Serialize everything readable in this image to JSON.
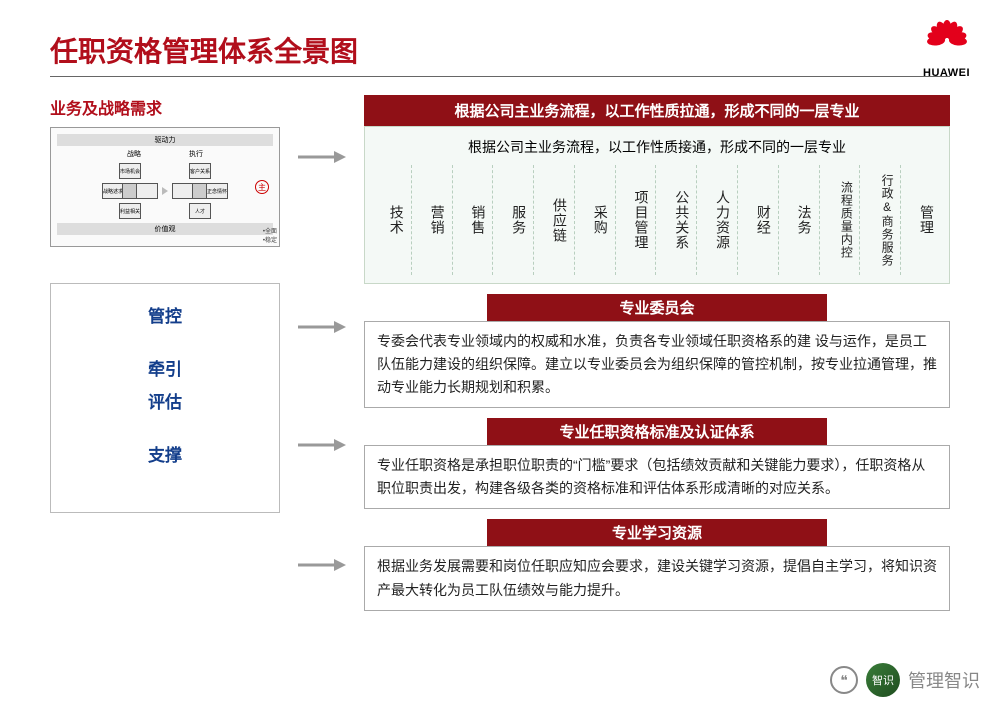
{
  "colors": {
    "brand_red": "#b10e1b",
    "banner_red": "#8f1016",
    "link_blue": "#133e8b",
    "grid_bg": "#f4f9f6",
    "grid_border": "#c8d8c8",
    "text": "#222222",
    "muted": "#888888"
  },
  "typography": {
    "title_size_pt": 21,
    "banner_size_pt": 11,
    "body_size_pt": 10.5,
    "column_size_pt": 10.5
  },
  "logo": {
    "text": "HUAWEI",
    "petal_color": "#e3001b"
  },
  "title": "任职资格管理体系全景图",
  "left": {
    "heading": "业务及战略需求",
    "thumb": {
      "top_label": "驱动力",
      "left_header": "战略",
      "right_header": "执行",
      "cross_left": {
        "t": "市场机会",
        "l": "战略述求",
        "r": "",
        "b": "利益相关"
      },
      "cross_right": {
        "t": "客户关系",
        "l": "",
        "r": "正念情怀",
        "b": "人才"
      },
      "bullet": "主",
      "bottom_label": "价值观",
      "legend1": "•全面",
      "legend2": "•稳定"
    },
    "box": {
      "items": [
        "管控",
        "牵引",
        "评估",
        "支撑"
      ]
    }
  },
  "right": {
    "banner_top": "根据公司主业务流程，以工作性质拉通，形成不同的一层专业",
    "grid": {
      "subtitle": "根据公司主业务流程，以工作性质接通，形成不同的一层专业",
      "columns": [
        "技术",
        "营销",
        "销售",
        "服务",
        "供应链",
        "采购",
        "项目管理",
        "公共关系",
        "人力资源",
        "财经",
        "法务",
        "流程质量内控",
        "行政&商务服务",
        "管理"
      ]
    },
    "sections": [
      {
        "title": "专业委员会",
        "body": "专委会代表专业领域内的权威和水准，负责各专业领域任职资格系的建 设与运作，是员工队伍能力建设的组织保障。建立以专业委员会为组织保障的管控机制，按专业拉通管理，推动专业能力长期规划和积累。"
      },
      {
        "title": "专业任职资格标准及认证体系",
        "body": "专业任职资格是承担职位职责的“门槛”要求（包括绩效贡献和关键能力要求），任职资格从职位职责出发，构建各级各类的资格标准和评估体系形成清晰的对应关系。"
      },
      {
        "title": "专业学习资源",
        "body": "根据业务发展需要和岗位任职应知应会要求，建设关键学习资源，提倡自主学习，将知识资产最大转化为员工队伍绩效与能力提升。"
      }
    ]
  },
  "watermark": {
    "avatar_text": "智识",
    "label": "管理智识"
  }
}
